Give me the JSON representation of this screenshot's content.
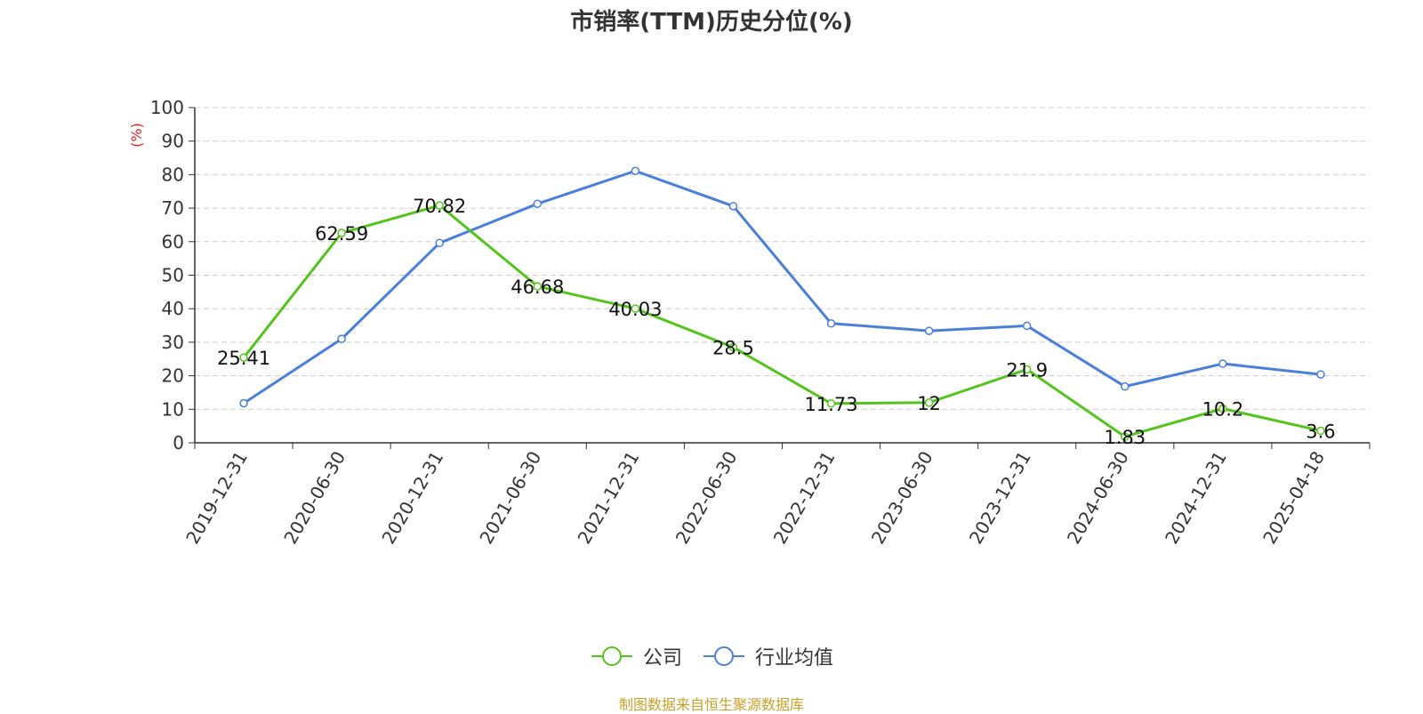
{
  "chart_data": {
    "type": "line",
    "title": "市销率(TTM)历史分位(%)",
    "ylabel": "(%)",
    "xlabel": "",
    "ylim": [
      0,
      100
    ],
    "yticks": [
      0,
      10,
      20,
      30,
      40,
      50,
      60,
      70,
      80,
      90,
      100
    ],
    "grid": true,
    "legend_position": "bottom",
    "categories": [
      "2019-12-31",
      "2020-06-30",
      "2020-12-31",
      "2021-06-30",
      "2021-12-31",
      "2022-06-30",
      "2022-12-31",
      "2023-06-30",
      "2023-12-31",
      "2024-06-30",
      "2024-12-31",
      "2025-04-18"
    ],
    "series": [
      {
        "name": "公司",
        "color": "#52c41a",
        "show_labels": true,
        "values": [
          25.41,
          62.59,
          70.82,
          46.68,
          40.03,
          28.5,
          11.73,
          12,
          21.9,
          1.83,
          10.2,
          3.6
        ]
      },
      {
        "name": "行业均值",
        "color": "#4a7fdb",
        "show_labels": false,
        "values": [
          11.8,
          31,
          59.6,
          71.3,
          81.1,
          70.6,
          35.6,
          33.4,
          34.9,
          16.8,
          23.6,
          20.4
        ]
      }
    ]
  },
  "source_note": "制图数据来自恒生聚源数据库"
}
